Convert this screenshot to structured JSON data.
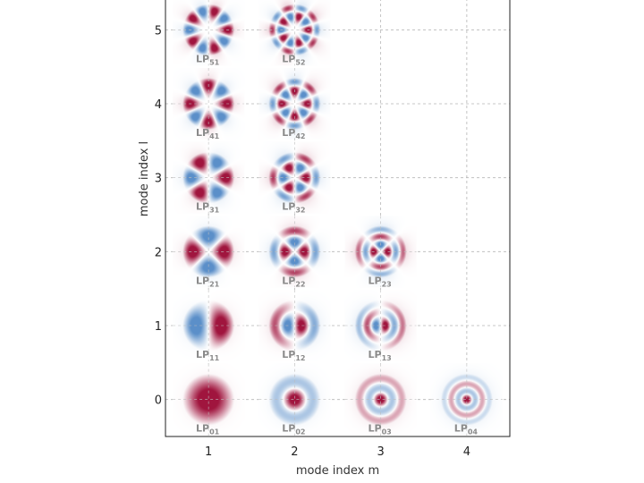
{
  "chart_data": {
    "type": "heatmap",
    "title": "",
    "xlabel": "mode index m",
    "ylabel": "mode index l",
    "x_ticks": [
      "1",
      "2",
      "3",
      "4"
    ],
    "y_ticks": [
      "0",
      "1",
      "2",
      "3",
      "4",
      "5"
    ],
    "xlim": [
      0.5,
      4.5
    ],
    "ylim": [
      -0.5,
      5.5
    ],
    "grid": true,
    "colormap": {
      "positive": "#a0153e",
      "negative": "#5b8fc9",
      "zero": "#ffffff"
    },
    "modes": [
      {
        "l": 0,
        "m": 1,
        "label": "LP",
        "sub": "01"
      },
      {
        "l": 0,
        "m": 2,
        "label": "LP",
        "sub": "02"
      },
      {
        "l": 0,
        "m": 3,
        "label": "LP",
        "sub": "03"
      },
      {
        "l": 0,
        "m": 4,
        "label": "LP",
        "sub": "04"
      },
      {
        "l": 1,
        "m": 1,
        "label": "LP",
        "sub": "11"
      },
      {
        "l": 1,
        "m": 2,
        "label": "LP",
        "sub": "12"
      },
      {
        "l": 1,
        "m": 3,
        "label": "LP",
        "sub": "13"
      },
      {
        "l": 2,
        "m": 1,
        "label": "LP",
        "sub": "21"
      },
      {
        "l": 2,
        "m": 2,
        "label": "LP",
        "sub": "22"
      },
      {
        "l": 2,
        "m": 3,
        "label": "LP",
        "sub": "23"
      },
      {
        "l": 3,
        "m": 1,
        "label": "LP",
        "sub": "31"
      },
      {
        "l": 3,
        "m": 2,
        "label": "LP",
        "sub": "32"
      },
      {
        "l": 4,
        "m": 1,
        "label": "LP",
        "sub": "41"
      },
      {
        "l": 4,
        "m": 2,
        "label": "LP",
        "sub": "42"
      },
      {
        "l": 5,
        "m": 1,
        "label": "LP",
        "sub": "51"
      },
      {
        "l": 5,
        "m": 2,
        "label": "LP",
        "sub": "52"
      }
    ]
  }
}
